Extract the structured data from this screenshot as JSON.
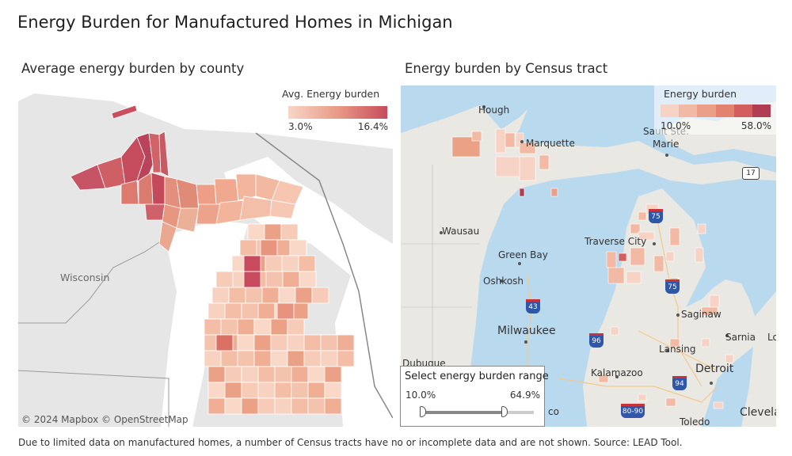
{
  "title": "Energy Burden for Manufactured Homes in Michigan",
  "left_panel": {
    "subtitle": "Average energy burden by county",
    "legend": {
      "title": "Avg. Energy burden",
      "min": "3.0%",
      "max": "16.4%"
    },
    "labels": {
      "wisconsin": "Wisconsin"
    },
    "credit": "© 2024 Mapbox  © OpenStreetMap"
  },
  "right_panel": {
    "subtitle": "Energy burden by Census tract",
    "legend": {
      "title": "Energy burden",
      "min": "10.0%",
      "max": "58.0%",
      "colors": [
        "#f6d3c4",
        "#f2b9a5",
        "#eb9f88",
        "#e3826f",
        "#d25f5e",
        "#b03e52"
      ]
    },
    "places": {
      "houghton": "Hough",
      "marquette": "Marquette",
      "sault": "Sault Ste.",
      "marie": "Marie",
      "wausau": "Wausau",
      "green_bay": "Green Bay",
      "oshkosh": "Oshkosh",
      "traverse": "Traverse City",
      "saginaw": "Saginaw",
      "milwaukee": "Milwaukee",
      "lansing": "Lansing",
      "sarnia": "Sarnia",
      "kalamazoo": "Kalamazoo",
      "detroit": "Detroit",
      "dubuque": "Dubuque",
      "toledo": "Toledo",
      "cleveland": "Clevela",
      "london": "Lo",
      "chicago_frag": "co"
    },
    "shields": {
      "i75a": "75",
      "i75b": "75",
      "i43": "43",
      "i96": "96",
      "i94": "94",
      "i8090": "80-90",
      "us17": "17"
    }
  },
  "range_filter": {
    "title": "Select energy burden range",
    "min": "10.0%",
    "max": "64.9%",
    "low_fraction": 0.0,
    "high_fraction": 0.74
  },
  "footnote": "Due to limited data on manufactured homes, a number of Census tracts have no or incomplete data and are not shown.  Source:  LEAD Tool."
}
